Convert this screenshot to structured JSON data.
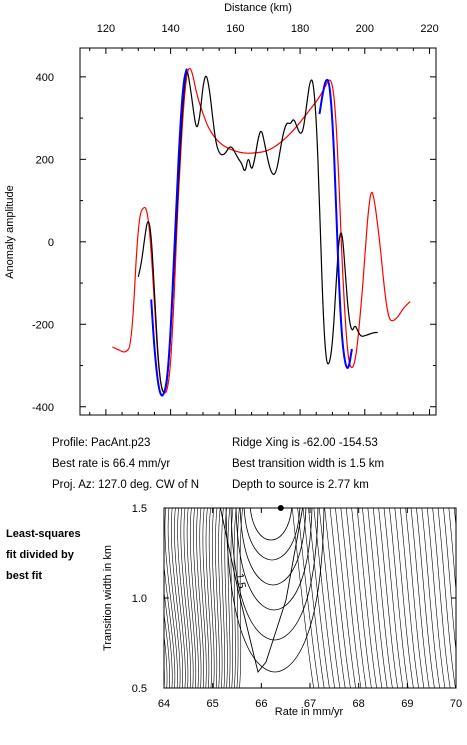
{
  "colors": {
    "observed": "#000000",
    "model": "#ff0000",
    "fit": "#0000ff",
    "contour": "#000000"
  },
  "profile_info": {
    "profile": "Profile: PacAnt.p23",
    "best_rate": "Best rate is 66.4 mm/yr",
    "proj_az": "Proj. Az: 127.0 deg. CW of N",
    "ridge_xing": "Ridge Xing is -62.00 -154.53",
    "best_width": "Best transition width is 1.5 km",
    "depth": "Depth to source is   2.77 km"
  },
  "side_label": "Least-squares\nfit divided by\nbest fit",
  "chart_data": [
    {
      "type": "line",
      "xlabel": "Distance (km)",
      "ylabel": "Anomaly amplitude",
      "xlim": [
        112,
        222
      ],
      "ylim": [
        -420,
        470
      ],
      "xticks": [
        120,
        140,
        160,
        180,
        200,
        220
      ],
      "yticks": [
        -400,
        -200,
        0,
        200,
        400
      ],
      "grid": false,
      "series": [
        {
          "role": "observed",
          "color": "#000000",
          "x": [
            130,
            131,
            132,
            133,
            134,
            135,
            136,
            137,
            138,
            139,
            140,
            141,
            142,
            143,
            144,
            145,
            146,
            147,
            148,
            149,
            150,
            151,
            152,
            153,
            154,
            155,
            156,
            157,
            158,
            159,
            160,
            161,
            162,
            163,
            164,
            165,
            166,
            167,
            168,
            169,
            170,
            171,
            172,
            173,
            174,
            175,
            176,
            177,
            178,
            179,
            180,
            181,
            182,
            183,
            184,
            185,
            186,
            187,
            188,
            189,
            190,
            191,
            192,
            193,
            194,
            195,
            196,
            197,
            198,
            199,
            200,
            201,
            202,
            203,
            204
          ],
          "y": [
            -85,
            -50,
            10,
            60,
            20,
            -120,
            -270,
            -350,
            -370,
            -340,
            -230,
            -80,
            80,
            230,
            360,
            425,
            380,
            320,
            270,
            300,
            380,
            410,
            370,
            300,
            240,
            215,
            210,
            215,
            230,
            230,
            215,
            200,
            190,
            165,
            210,
            170,
            200,
            250,
            275,
            240,
            200,
            170,
            160,
            180,
            230,
            270,
            290,
            285,
            300,
            280,
            260,
            270,
            330,
            390,
            395,
            300,
            100,
            -150,
            -290,
            -300,
            -250,
            -120,
            10,
            30,
            -80,
            -180,
            -220,
            -200,
            -220,
            -230,
            -228,
            -225,
            -222,
            -220,
            -220
          ]
        },
        {
          "role": "model",
          "color": "#ff0000",
          "x": [
            122,
            124,
            126,
            128,
            130,
            132,
            133,
            134,
            135,
            136,
            137,
            138,
            139,
            140,
            141,
            142,
            143,
            144,
            145,
            146,
            147,
            148,
            150,
            152,
            155,
            158,
            162,
            166,
            170,
            174,
            178,
            182,
            186,
            188,
            189,
            190,
            191,
            192,
            193,
            194,
            195,
            196,
            197,
            198,
            199,
            200,
            201,
            202,
            203,
            204,
            205,
            206,
            207,
            208,
            210,
            212,
            214
          ],
          "y": [
            -255,
            -262,
            -270,
            -250,
            60,
            90,
            65,
            -20,
            -150,
            -280,
            -350,
            -370,
            -360,
            -300,
            -150,
            50,
            200,
            330,
            410,
            425,
            400,
            360,
            310,
            270,
            240,
            225,
            215,
            215,
            220,
            240,
            270,
            310,
            350,
            380,
            395,
            385,
            310,
            150,
            -50,
            -200,
            -290,
            -310,
            -290,
            -230,
            -140,
            -40,
            70,
            130,
            100,
            40,
            -30,
            -110,
            -170,
            -195,
            -185,
            -160,
            -145
          ]
        },
        {
          "role": "fit",
          "color": "#0000ff",
          "x": [
            134,
            135,
            136,
            137,
            138,
            139,
            140,
            141,
            142,
            143,
            144,
            145,
            186,
            187,
            188,
            189,
            190,
            191,
            192,
            193,
            194,
            195,
            196
          ],
          "y": [
            -140,
            -260,
            -340,
            -375,
            -370,
            -330,
            -220,
            -50,
            130,
            280,
            390,
            420,
            310,
            360,
            395,
            390,
            300,
            120,
            -100,
            -240,
            -300,
            -310,
            -260
          ]
        }
      ]
    },
    {
      "type": "contour",
      "xlabel": "Rate in mm/yr",
      "ylabel": "Transition width in km",
      "xlim": [
        64,
        70
      ],
      "ylim": [
        0.5,
        1.5
      ],
      "xticks": [
        "64",
        "65",
        "66",
        "67",
        "68",
        "69",
        "70"
      ],
      "yticks": [
        "0.5",
        "1.0",
        "1.5"
      ],
      "best_fit": {
        "x": 66.4,
        "y": 1.5
      },
      "contour_label": "1.5"
    }
  ]
}
